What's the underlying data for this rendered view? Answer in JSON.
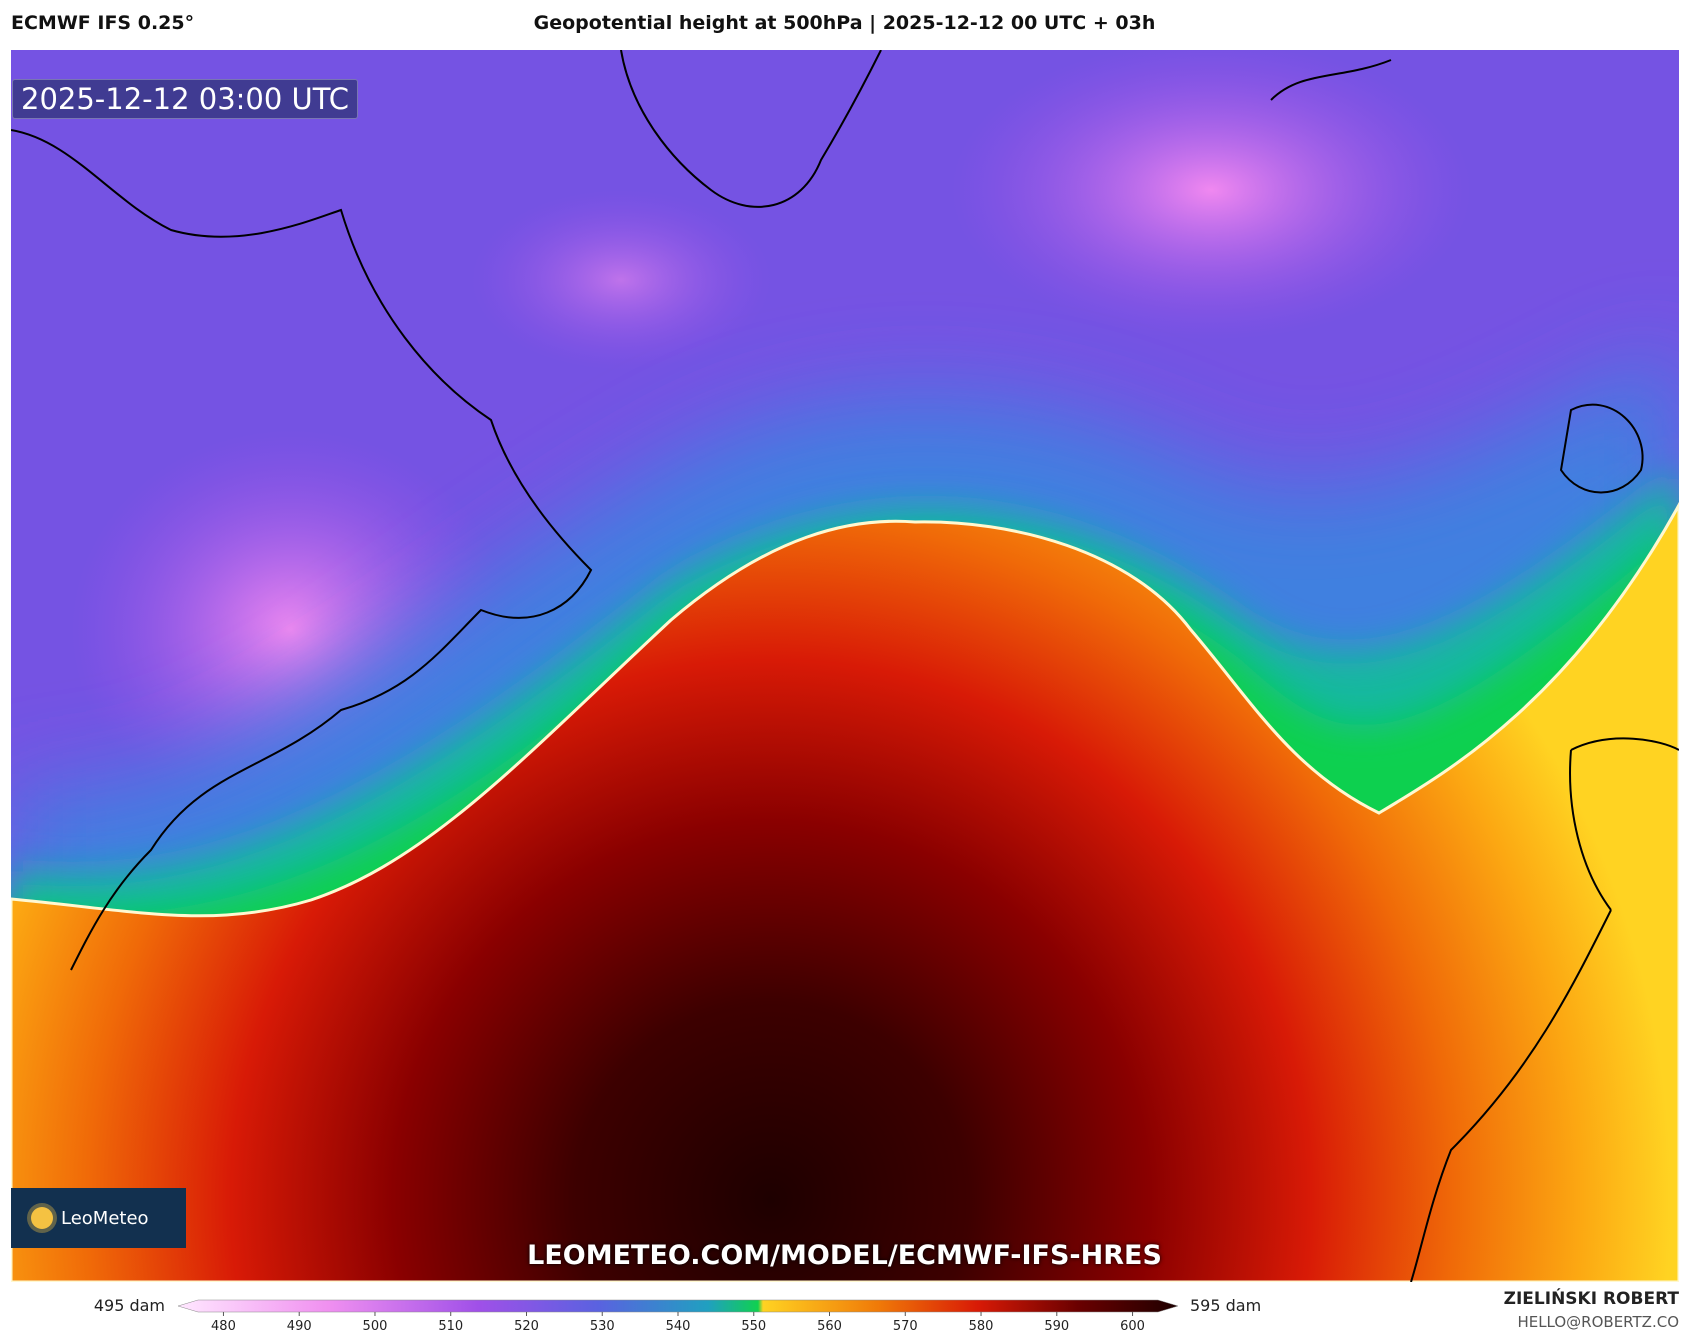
{
  "header": {
    "model": "ECMWF IFS 0.25°",
    "title": "Geopotential height at 500hPa | 2025-12-12 00 UTC + 03h"
  },
  "map": {
    "valid_time": "2025-12-12 03:00 UTC",
    "logo": "LeoMeteo",
    "watermark": "LEOMETEO.COM/MODEL/ECMWF-IFS-HRES"
  },
  "colorbar": {
    "range": [
      474,
      606
    ],
    "ticks": [
      480,
      490,
      500,
      510,
      520,
      530,
      540,
      550,
      560,
      570,
      580,
      590,
      600
    ],
    "min_label": "495 dam",
    "max_label": "595 dam"
  },
  "footer": {
    "author": "ZIELIŃSKI ROBERT",
    "email": "HELLO@ROBERTZ.CO"
  }
}
